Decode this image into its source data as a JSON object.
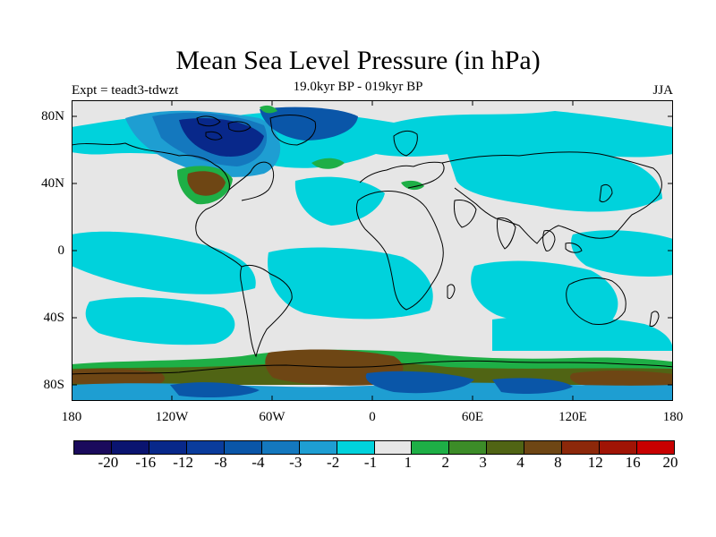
{
  "header": {
    "title": "Mean Sea Level Pressure (in hPa)",
    "subtitle": "19.0kyr BP - 019kyr BP",
    "expt": "Expt = teadt3-tdwzt",
    "season": "JJA"
  },
  "axes": {
    "y_labels": [
      "80N",
      "40N",
      "0",
      "40S",
      "80S"
    ],
    "x_labels": [
      "180",
      "120W",
      "60W",
      "0",
      "60E",
      "120E",
      "180"
    ]
  },
  "colorbar": {
    "colors": [
      "#1a0a5c",
      "#0a1470",
      "#08288a",
      "#0a3c9c",
      "#0a56a8",
      "#1478be",
      "#1e9ed2",
      "#00d2dc",
      "#e6e6e6",
      "#1eaf46",
      "#3c8c28",
      "#506414",
      "#6e4614",
      "#8c280a",
      "#a01405",
      "#c80000"
    ],
    "labels": [
      "-20",
      "-16",
      "-12",
      "-8",
      "-4",
      "-3",
      "-2",
      "-1",
      "1",
      "2",
      "3",
      "4",
      "8",
      "12",
      "16",
      "20"
    ]
  },
  "field_colors": {
    "neutral": "#e6e6e6",
    "cyan": "#00d2dc",
    "light_blue": "#1e9ed2",
    "mid_blue": "#1478be",
    "blue": "#0a56a8",
    "dark_blue": "#08288a",
    "green": "#1eaf46",
    "dark_green": "#506414",
    "brown": "#6e4614"
  }
}
